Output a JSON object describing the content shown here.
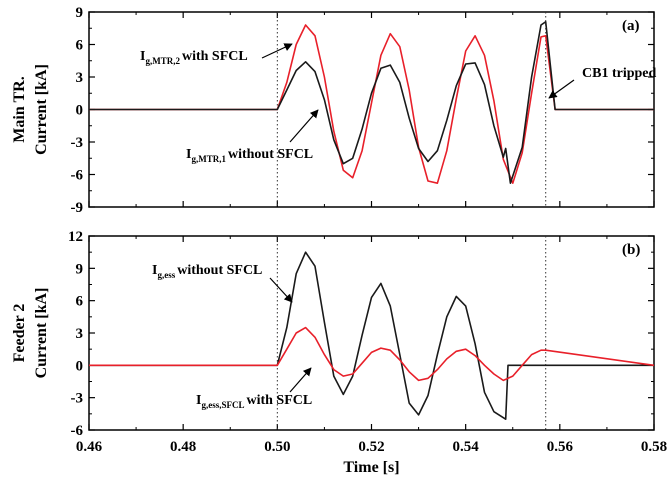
{
  "xlabel": "Time [s]",
  "x_ticks": [
    "0.46",
    "0.48",
    "0.50",
    "0.52",
    "0.54",
    "0.56",
    "0.58"
  ],
  "colors": {
    "with_sfcl": "#e8202a",
    "without_sfcl": "#1a1a1a",
    "axis": "#000000"
  },
  "chart_data": [
    {
      "type": "line",
      "panel_label": "(a)",
      "ylabel": [
        "Main TR.",
        "Current [kA]"
      ],
      "xlim": [
        0.46,
        0.58
      ],
      "ylim": [
        -9,
        9
      ],
      "y_ticks": [
        "9",
        "6",
        "3",
        "0",
        "-3",
        "-6",
        "-9"
      ],
      "vlines": [
        0.5,
        0.557
      ],
      "series": [
        {
          "name": "I_g,MTR,2 with SFCL",
          "color": "#e8202a",
          "x": [
            0.46,
            0.5,
            0.502,
            0.504,
            0.506,
            0.508,
            0.51,
            0.512,
            0.514,
            0.516,
            0.518,
            0.52,
            0.522,
            0.524,
            0.526,
            0.528,
            0.53,
            0.532,
            0.534,
            0.536,
            0.538,
            0.54,
            0.542,
            0.544,
            0.546,
            0.548,
            0.55,
            0.552,
            0.554,
            0.556,
            0.557,
            0.559,
            0.58
          ],
          "y": [
            0,
            0,
            2.5,
            6.0,
            7.8,
            6.8,
            3.0,
            -2.0,
            -5.6,
            -6.3,
            -3.8,
            0.6,
            5.0,
            7.0,
            5.8,
            1.8,
            -3.5,
            -6.6,
            -6.8,
            -3.8,
            1.0,
            5.4,
            6.8,
            5.0,
            0.8,
            -4.6,
            -6.8,
            -4.0,
            1.5,
            6.7,
            6.8,
            0,
            0
          ]
        },
        {
          "name": "I_g,MTR,1 without SFCL",
          "color": "#1a1a1a",
          "x": [
            0.46,
            0.5,
            0.502,
            0.504,
            0.506,
            0.508,
            0.51,
            0.512,
            0.514,
            0.516,
            0.518,
            0.52,
            0.522,
            0.524,
            0.526,
            0.528,
            0.53,
            0.532,
            0.534,
            0.536,
            0.538,
            0.54,
            0.542,
            0.544,
            0.546,
            0.548,
            0.5485,
            0.5495,
            0.552,
            0.554,
            0.556,
            0.557,
            0.559,
            0.58
          ],
          "y": [
            0,
            0,
            1.8,
            3.6,
            4.4,
            3.5,
            0.9,
            -2.8,
            -5.0,
            -4.5,
            -1.8,
            1.5,
            3.8,
            4.1,
            2.5,
            -0.8,
            -3.6,
            -4.8,
            -3.8,
            -1.0,
            2.2,
            4.2,
            4.3,
            2.3,
            -1.5,
            -4.4,
            -3.6,
            -6.8,
            -3.5,
            3.0,
            7.8,
            8.1,
            0,
            0
          ]
        }
      ],
      "annotations": [
        {
          "main": "I",
          "sub": "g,MTR,2",
          "text": "with SFCL"
        },
        {
          "main": "I",
          "sub": "g,MTR,1",
          "text": "without SFCL"
        },
        {
          "main": "",
          "sub": "",
          "text": "CB1 tripped"
        }
      ]
    },
    {
      "type": "line",
      "panel_label": "(b)",
      "ylabel": [
        "Feeder 2",
        "Current [kA]"
      ],
      "xlim": [
        0.46,
        0.58
      ],
      "ylim": [
        -6,
        12
      ],
      "y_ticks": [
        "12",
        "9",
        "6",
        "3",
        "0",
        "-3",
        "-6"
      ],
      "vlines": [
        0.5,
        0.557
      ],
      "series": [
        {
          "name": "I_g,ess without SFCL",
          "color": "#1a1a1a",
          "x": [
            0.46,
            0.5,
            0.502,
            0.504,
            0.506,
            0.508,
            0.51,
            0.512,
            0.514,
            0.516,
            0.518,
            0.52,
            0.522,
            0.524,
            0.526,
            0.528,
            0.53,
            0.532,
            0.534,
            0.536,
            0.538,
            0.54,
            0.542,
            0.544,
            0.546,
            0.5485,
            0.549,
            0.557,
            0.58
          ],
          "y": [
            0,
            0,
            3.5,
            8.5,
            10.5,
            9.2,
            4.0,
            -1.0,
            -2.7,
            -1.0,
            2.8,
            6.3,
            7.6,
            5.5,
            1.0,
            -3.5,
            -4.6,
            -2.8,
            1.0,
            4.5,
            6.4,
            5.5,
            2.0,
            -2.5,
            -4.3,
            -5.0,
            0,
            0,
            0
          ]
        },
        {
          "name": "I_g,ess,SFCL with SFCL",
          "color": "#e8202a",
          "x": [
            0.46,
            0.5,
            0.502,
            0.504,
            0.506,
            0.508,
            0.51,
            0.512,
            0.514,
            0.516,
            0.518,
            0.52,
            0.522,
            0.524,
            0.526,
            0.528,
            0.53,
            0.532,
            0.534,
            0.536,
            0.538,
            0.54,
            0.542,
            0.544,
            0.546,
            0.548,
            0.55,
            0.552,
            0.554,
            0.556,
            0.557,
            0.58
          ],
          "y": [
            0,
            0,
            1.5,
            3.0,
            3.5,
            2.6,
            1.0,
            -0.4,
            -1.0,
            -0.8,
            0.2,
            1.2,
            1.6,
            1.4,
            0.5,
            -0.6,
            -1.4,
            -1.2,
            -0.4,
            0.6,
            1.3,
            1.5,
            0.9,
            0,
            -0.8,
            -1.4,
            -1.0,
            0,
            1.0,
            1.4,
            1.4,
            0
          ]
        }
      ],
      "annotations": [
        {
          "main": "I",
          "sub": "g,ess",
          "text": "without SFCL"
        },
        {
          "main": "I",
          "sub": "g,ess,SFCL",
          "text": "with SFCL"
        }
      ]
    }
  ]
}
